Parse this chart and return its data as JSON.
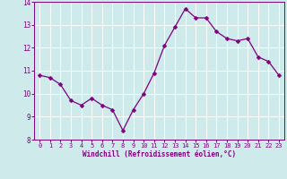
{
  "x": [
    0,
    1,
    2,
    3,
    4,
    5,
    6,
    7,
    8,
    9,
    10,
    11,
    12,
    13,
    14,
    15,
    16,
    17,
    18,
    19,
    20,
    21,
    22,
    23
  ],
  "y": [
    10.8,
    10.7,
    10.4,
    9.7,
    9.5,
    9.8,
    9.5,
    9.3,
    8.4,
    9.3,
    10.0,
    10.9,
    12.1,
    12.9,
    13.7,
    13.3,
    13.3,
    12.7,
    12.4,
    12.3,
    12.4,
    11.6,
    11.4,
    10.8
  ],
  "line_color": "#800080",
  "marker": "D",
  "marker_size": 2.5,
  "bg_color": "#ceeaea",
  "grid_color": "#ffffff",
  "xlabel": "Windchill (Refroidissement éolien,°C)",
  "xlabel_color": "#800080",
  "tick_color": "#800080",
  "xlim": [
    -0.5,
    23.5
  ],
  "ylim": [
    8,
    14
  ],
  "yticks": [
    8,
    9,
    10,
    11,
    12,
    13,
    14
  ],
  "xticks": [
    0,
    1,
    2,
    3,
    4,
    5,
    6,
    7,
    8,
    9,
    10,
    11,
    12,
    13,
    14,
    15,
    16,
    17,
    18,
    19,
    20,
    21,
    22,
    23
  ]
}
